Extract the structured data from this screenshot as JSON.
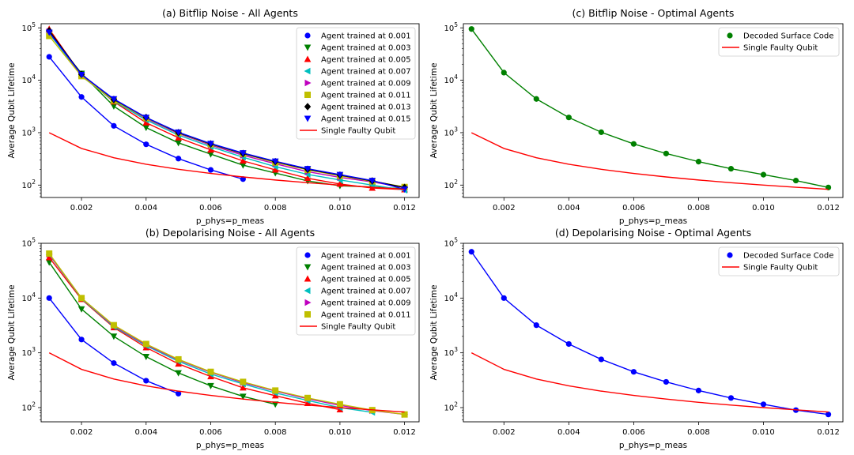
{
  "colors": {
    "0.001": "#0000ff",
    "0.003": "#008000",
    "0.005": "#ff0000",
    "0.007": "#00bfbf",
    "0.009": "#bf00bf",
    "0.011": "#bfbf00",
    "0.013": "#000000",
    "0.015": "#0000ff",
    "single": "#ff0000"
  },
  "chart_data": [
    {
      "type": "line",
      "title": "(a) Bitflip Noise - All Agents",
      "xlabel": "p_phys=p_meas",
      "ylabel": "Average Qubit Lifetime",
      "xlim": [
        0.00075,
        0.01245
      ],
      "ylim": [
        58,
        120000
      ],
      "yscale": "log",
      "xticks": [
        "0.002",
        "0.004",
        "0.006",
        "0.008",
        "0.010",
        "0.012"
      ],
      "legend_loc": "upper right",
      "series": [
        {
          "name": "Agent trained at 0.001",
          "color": "#0000ff",
          "marker": "circle",
          "x": [
            0.001,
            0.002,
            0.003,
            0.004,
            0.005,
            0.006,
            0.007
          ],
          "y": [
            28000,
            4800,
            1350,
            600,
            320,
            195,
            130
          ]
        },
        {
          "name": "Agent trained at 0.003",
          "color": "#008000",
          "marker": "triangle-down",
          "x": [
            0.001,
            0.002,
            0.003,
            0.004,
            0.005,
            0.006,
            0.007,
            0.008,
            0.009,
            0.01,
            0.011,
            0.012
          ],
          "y": [
            78000,
            13500,
            3200,
            1250,
            640,
            390,
            240,
            170,
            120,
            97,
            92,
            85
          ]
        },
        {
          "name": "Agent trained at 0.005",
          "color": "#ff0000",
          "marker": "triangle-up",
          "x": [
            0.001,
            0.002,
            0.003,
            0.004,
            0.005,
            0.006,
            0.007,
            0.008,
            0.009,
            0.01,
            0.011,
            0.012
          ],
          "y": [
            95000,
            12500,
            3900,
            1550,
            800,
            470,
            290,
            195,
            135,
            105,
            88,
            82
          ]
        },
        {
          "name": "Agent trained at 0.007",
          "color": "#00bfbf",
          "marker": "triangle-left",
          "x": [
            0.001,
            0.002,
            0.003,
            0.004,
            0.005,
            0.006,
            0.007,
            0.008,
            0.009,
            0.01,
            0.011,
            0.012
          ],
          "y": [
            80000,
            12000,
            4000,
            1750,
            900,
            540,
            340,
            225,
            160,
            125,
            100,
            80
          ]
        },
        {
          "name": "Agent trained at 0.009",
          "color": "#bf00bf",
          "marker": "triangle-right",
          "x": [
            0.001,
            0.002,
            0.003,
            0.004,
            0.005,
            0.006,
            0.007,
            0.008,
            0.009,
            0.01,
            0.011,
            0.012
          ],
          "y": [
            85000,
            12500,
            4200,
            1850,
            960,
            580,
            370,
            255,
            180,
            140,
            115,
            90
          ]
        },
        {
          "name": "Agent trained at 0.011",
          "color": "#bfbf00",
          "marker": "square",
          "x": [
            0.001,
            0.002,
            0.003,
            0.004,
            0.005,
            0.006,
            0.007,
            0.008,
            0.009,
            0.01,
            0.011,
            0.012
          ],
          "y": [
            70000,
            12000,
            4100,
            1900,
            990,
            600,
            395,
            270,
            195,
            150,
            118,
            92
          ]
        },
        {
          "name": "Agent trained at 0.013",
          "color": "#000000",
          "marker": "diamond",
          "x": [
            0.001,
            0.002,
            0.003,
            0.004,
            0.005,
            0.006,
            0.007,
            0.008,
            0.009,
            0.01,
            0.011,
            0.012
          ],
          "y": [
            88000,
            13000,
            4300,
            1950,
            1000,
            610,
            400,
            280,
            200,
            155,
            120,
            90
          ]
        },
        {
          "name": "Agent trained at 0.015",
          "color": "#0000ff",
          "marker": "triangle-down",
          "x": [
            0.001,
            0.002,
            0.003,
            0.004,
            0.005,
            0.006,
            0.007,
            0.008,
            0.009,
            0.01,
            0.011,
            0.012
          ],
          "y": [
            82000,
            12800,
            4400,
            1950,
            1020,
            620,
            410,
            285,
            205,
            158,
            122,
            83
          ]
        },
        {
          "name": "Single Faulty Qubit",
          "color": "#ff0000",
          "marker": "none",
          "x": [
            0.001,
            0.002,
            0.003,
            0.004,
            0.005,
            0.006,
            0.007,
            0.008,
            0.009,
            0.01,
            0.011,
            0.012
          ],
          "y": [
            1000,
            500,
            333,
            250,
            200,
            167,
            143,
            125,
            111,
            100,
            91,
            83
          ]
        }
      ]
    },
    {
      "type": "line",
      "title": "(c) Bitflip Noise - Optimal Agents",
      "xlabel": "p_phys=p_meas",
      "ylabel": "Average Qubit Lifetime",
      "xlim": [
        0.00075,
        0.01245
      ],
      "ylim": [
        58,
        120000
      ],
      "yscale": "log",
      "xticks": [
        "0.002",
        "0.004",
        "0.006",
        "0.008",
        "0.010",
        "0.012"
      ],
      "legend_loc": "upper right",
      "series": [
        {
          "name": "Decoded Surface Code",
          "color": "#008000",
          "marker": "circle",
          "x": [
            0.001,
            0.002,
            0.003,
            0.004,
            0.005,
            0.006,
            0.007,
            0.008,
            0.009,
            0.01,
            0.011,
            0.012
          ],
          "y": [
            95000,
            14000,
            4400,
            1950,
            1020,
            610,
            400,
            280,
            205,
            158,
            122,
            90
          ]
        },
        {
          "name": "Single Faulty Qubit",
          "color": "#ff0000",
          "marker": "none",
          "x": [
            0.001,
            0.002,
            0.003,
            0.004,
            0.005,
            0.006,
            0.007,
            0.008,
            0.009,
            0.01,
            0.011,
            0.012
          ],
          "y": [
            1000,
            500,
            333,
            250,
            200,
            167,
            143,
            125,
            111,
            100,
            91,
            83
          ]
        }
      ]
    },
    {
      "type": "line",
      "title": "(b) Depolarising Noise - All Agents",
      "xlabel": "p_phys=p_meas",
      "ylabel": "Average Qubit Lifetime",
      "xlim": [
        0.00075,
        0.01245
      ],
      "ylim": [
        55,
        100000
      ],
      "yscale": "log",
      "xticks": [
        "0.002",
        "0.004",
        "0.006",
        "0.008",
        "0.010",
        "0.012"
      ],
      "legend_loc": "upper right",
      "series": [
        {
          "name": "Agent trained at 0.001",
          "color": "#0000ff",
          "marker": "circle",
          "x": [
            0.001,
            0.002,
            0.003,
            0.004,
            0.005
          ],
          "y": [
            10000,
            1750,
            650,
            310,
            180
          ]
        },
        {
          "name": "Agent trained at 0.003",
          "color": "#008000",
          "marker": "triangle-down",
          "x": [
            0.001,
            0.002,
            0.003,
            0.004,
            0.005,
            0.006,
            0.007,
            0.008
          ],
          "y": [
            45000,
            6300,
            2000,
            850,
            430,
            250,
            160,
            115
          ]
        },
        {
          "name": "Agent trained at 0.005",
          "color": "#ff0000",
          "marker": "triangle-up",
          "x": [
            0.001,
            0.002,
            0.003,
            0.004,
            0.005,
            0.006,
            0.007,
            0.008,
            0.009,
            0.01
          ],
          "y": [
            55000,
            9500,
            2900,
            1250,
            630,
            370,
            230,
            165,
            120,
            92
          ]
        },
        {
          "name": "Agent trained at 0.007",
          "color": "#00bfbf",
          "marker": "triangle-left",
          "x": [
            0.001,
            0.002,
            0.003,
            0.004,
            0.005,
            0.006,
            0.007,
            0.008,
            0.009,
            0.01,
            0.011
          ],
          "y": [
            62000,
            9800,
            3000,
            1350,
            700,
            410,
            270,
            185,
            135,
            100,
            82
          ]
        },
        {
          "name": "Agent trained at 0.009",
          "color": "#bf00bf",
          "marker": "triangle-right",
          "x": [
            0.001,
            0.002,
            0.003,
            0.004,
            0.005,
            0.006,
            0.007,
            0.008,
            0.009,
            0.01,
            0.011,
            0.012
          ],
          "y": [
            63000,
            10000,
            3100,
            1400,
            740,
            440,
            285,
            200,
            145,
            110,
            88,
            75
          ]
        },
        {
          "name": "Agent trained at 0.011",
          "color": "#bfbf00",
          "marker": "square",
          "x": [
            0.001,
            0.002,
            0.003,
            0.004,
            0.005,
            0.006,
            0.007,
            0.008,
            0.009,
            0.01,
            0.011,
            0.012
          ],
          "y": [
            65000,
            10000,
            3200,
            1450,
            760,
            450,
            295,
            205,
            150,
            115,
            90,
            75
          ]
        },
        {
          "name": "Single Faulty Qubit",
          "color": "#ff0000",
          "marker": "none",
          "x": [
            0.001,
            0.002,
            0.003,
            0.004,
            0.005,
            0.006,
            0.007,
            0.008,
            0.009,
            0.01,
            0.011,
            0.012
          ],
          "y": [
            1000,
            500,
            333,
            250,
            200,
            167,
            143,
            125,
            111,
            100,
            91,
            83
          ]
        }
      ]
    },
    {
      "type": "line",
      "title": "(d) Depolarising Noise - Optimal Agents",
      "xlabel": "p_phys=p_meas",
      "ylabel": "Average Qubit Lifetime",
      "xlim": [
        0.00075,
        0.01245
      ],
      "ylim": [
        55,
        100000
      ],
      "yscale": "log",
      "xticks": [
        "0.002",
        "0.004",
        "0.006",
        "0.008",
        "0.010",
        "0.012"
      ],
      "legend_loc": "upper right",
      "series": [
        {
          "name": "Decoded Surface Code",
          "color": "#0000ff",
          "marker": "circle",
          "x": [
            0.001,
            0.002,
            0.003,
            0.004,
            0.005,
            0.006,
            0.007,
            0.008,
            0.009,
            0.01,
            0.011,
            0.012
          ],
          "y": [
            70000,
            10000,
            3200,
            1450,
            760,
            450,
            295,
            205,
            150,
            115,
            90,
            75
          ]
        },
        {
          "name": "Single Faulty Qubit",
          "color": "#ff0000",
          "marker": "none",
          "x": [
            0.001,
            0.002,
            0.003,
            0.004,
            0.005,
            0.006,
            0.007,
            0.008,
            0.009,
            0.01,
            0.011,
            0.012
          ],
          "y": [
            1000,
            500,
            333,
            250,
            200,
            167,
            143,
            125,
            111,
            100,
            91,
            83
          ]
        }
      ]
    }
  ]
}
